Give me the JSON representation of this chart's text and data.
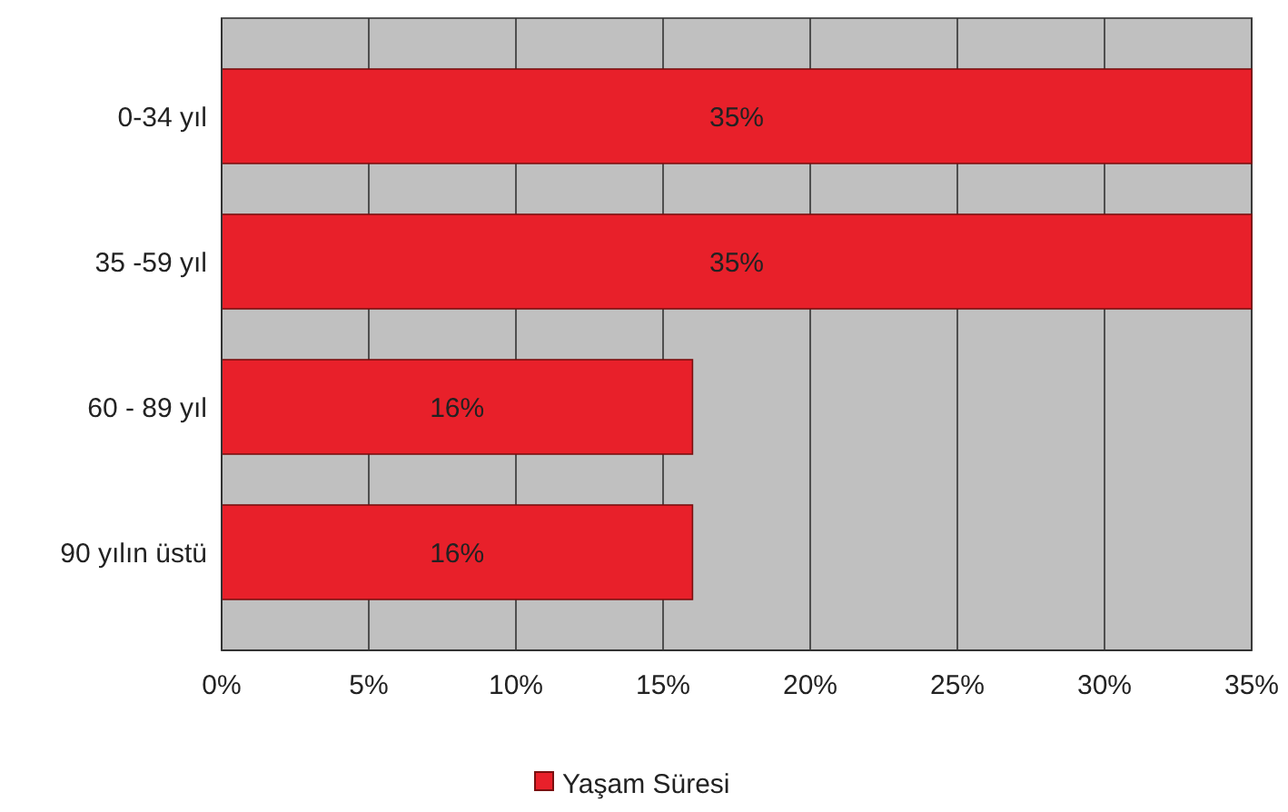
{
  "chart_data": {
    "type": "bar",
    "orientation": "horizontal",
    "categories": [
      "0-34 yıl",
      "35 -59 yıl",
      "60 - 89 yıl",
      "90 yılın üstü"
    ],
    "series": [
      {
        "name": "Yaşam Süresi",
        "color": "#e8202a",
        "values": [
          35,
          35,
          16,
          16
        ],
        "value_labels": [
          "35%",
          "35%",
          "16%",
          "16%"
        ]
      }
    ],
    "xlim": [
      0,
      35
    ],
    "xticks": [
      {
        "value": 0,
        "label": "0%"
      },
      {
        "value": 5,
        "label": "5%"
      },
      {
        "value": 10,
        "label": "10%"
      },
      {
        "value": 15,
        "label": "15%"
      },
      {
        "value": 20,
        "label": "20%"
      },
      {
        "value": 25,
        "label": "25%"
      },
      {
        "value": 30,
        "label": "30%"
      },
      {
        "value": 35,
        "label": "35%"
      }
    ],
    "grid": "x",
    "legend": "bottom"
  }
}
